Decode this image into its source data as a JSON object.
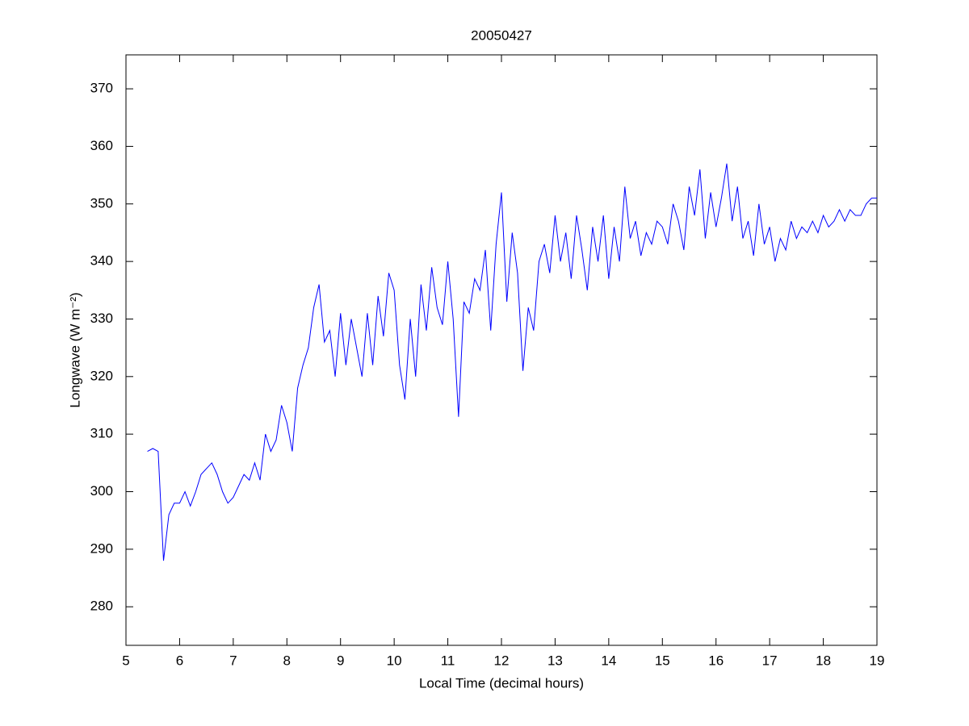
{
  "chart_data": {
    "type": "line",
    "title": "20050427",
    "xlabel": "Local Time (decimal hours)",
    "ylabel": "Longwave (W m⁻²)",
    "color": "#0000ff",
    "x": [
      5.4,
      5.5,
      5.6,
      5.7,
      5.8,
      5.9,
      6.0,
      6.1,
      6.2,
      6.3,
      6.4,
      6.5,
      6.6,
      6.7,
      6.8,
      6.9,
      7.0,
      7.1,
      7.2,
      7.3,
      7.4,
      7.5,
      7.6,
      7.7,
      7.8,
      7.9,
      8.0,
      8.1,
      8.2,
      8.3,
      8.4,
      8.5,
      8.6,
      8.7,
      8.8,
      8.9,
      9.0,
      9.1,
      9.2,
      9.3,
      9.4,
      9.5,
      9.6,
      9.7,
      9.8,
      9.9,
      10.0,
      10.1,
      10.2,
      10.3,
      10.4,
      10.5,
      10.6,
      10.7,
      10.8,
      10.9,
      11.0,
      11.1,
      11.2,
      11.3,
      11.4,
      11.5,
      11.6,
      11.7,
      11.8,
      11.9,
      12.0,
      12.1,
      12.2,
      12.3,
      12.4,
      12.5,
      12.6,
      12.7,
      12.8,
      12.9,
      13.0,
      13.1,
      13.2,
      13.3,
      13.4,
      13.5,
      13.6,
      13.7,
      13.8,
      13.9,
      14.0,
      14.1,
      14.2,
      14.3,
      14.4,
      14.5,
      14.6,
      14.7,
      14.8,
      14.9,
      15.0,
      15.1,
      15.2,
      15.3,
      15.4,
      15.5,
      15.6,
      15.7,
      15.8,
      15.9,
      16.0,
      16.1,
      16.2,
      16.3,
      16.4,
      16.5,
      16.6,
      16.7,
      16.8,
      16.9,
      17.0,
      17.1,
      17.2,
      17.3,
      17.4,
      17.5,
      17.6,
      17.7,
      17.8,
      17.9,
      18.0,
      18.1,
      18.2,
      18.3,
      18.4,
      18.5,
      18.6,
      18.7,
      18.8,
      18.9,
      19.0
    ],
    "values": [
      307,
      307.5,
      307,
      288,
      296,
      298,
      298,
      300,
      297.5,
      300,
      303,
      304,
      305,
      303,
      300,
      298,
      299,
      301,
      303,
      302,
      305,
      302,
      310,
      307,
      309,
      315,
      312,
      307,
      318,
      322,
      325,
      332,
      336,
      326,
      328,
      320,
      331,
      322,
      330,
      325,
      320,
      331,
      322,
      334,
      327,
      338,
      335,
      322,
      316,
      330,
      320,
      336,
      328,
      339,
      332,
      329,
      340,
      330,
      313,
      333,
      331,
      337,
      335,
      342,
      328,
      343,
      352,
      333,
      345,
      338,
      321,
      332,
      328,
      340,
      343,
      338,
      348,
      340,
      345,
      337,
      348,
      342,
      335,
      346,
      340,
      348,
      337,
      346,
      340,
      353,
      344,
      347,
      341,
      345,
      343,
      347,
      346,
      343,
      350,
      347,
      342,
      353,
      348,
      356,
      344,
      352,
      346,
      351,
      357,
      347,
      353,
      344,
      347,
      341,
      350,
      343,
      346,
      340,
      344,
      342,
      347,
      344,
      346,
      345,
      347,
      345,
      348,
      346,
      347,
      349,
      347,
      349,
      348,
      348,
      350,
      351,
      351
    ],
    "xlim": [
      5,
      19
    ],
    "xticks": [
      5,
      6,
      7,
      8,
      9,
      10,
      11,
      12,
      13,
      14,
      15,
      16,
      17,
      18,
      19
    ],
    "ylim": [
      273.3,
      375.9
    ],
    "yticks": [
      280,
      290,
      300,
      310,
      320,
      330,
      340,
      350,
      360,
      370
    ]
  }
}
